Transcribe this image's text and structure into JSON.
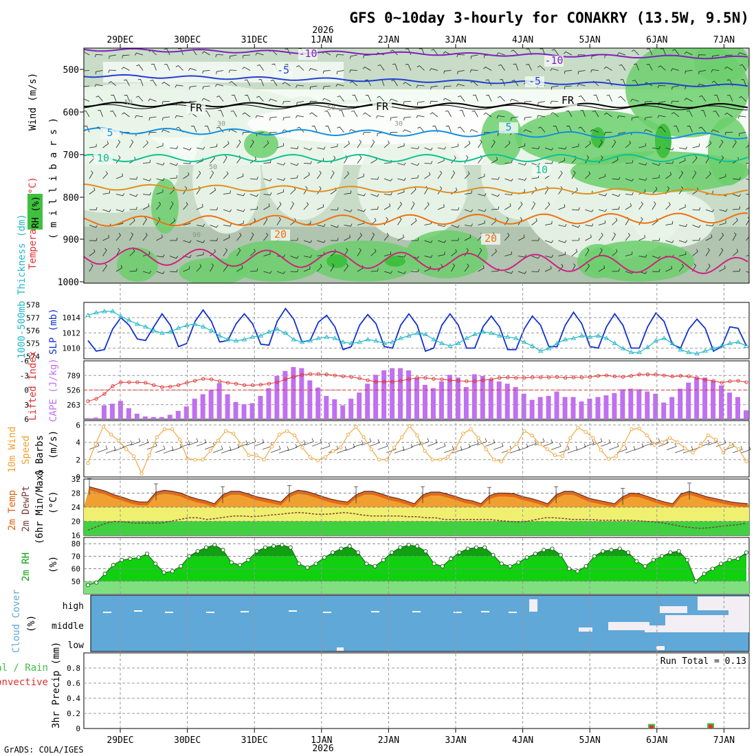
{
  "header": {
    "title": "GFS 0~10day 3-hourly for CONAKRY (13.5W, 9.5N)",
    "year": "2026",
    "footer": "GrADS: COLA/IGES"
  },
  "dates": [
    "29DEC",
    "30DEC",
    "31DEC",
    "1JAN",
    "2JAN",
    "3JAN",
    "4JAN",
    "5JAN",
    "6JAN",
    "7JAN"
  ],
  "colors": {
    "rh_light": "#e8f4e8",
    "rh_mid": "#c8dcc8",
    "rh_dark": "#b0c4b0",
    "rh_green": "#6ccf6c",
    "rh_bright": "#40c040",
    "slp": "#1030d0",
    "thickness": "#20b8c8",
    "lifted_index": "#e03030",
    "cape": "#c070f0",
    "wind10m": "#f0a030",
    "temp_fill": "#f0a030",
    "temp_top": "#e06010",
    "dewpt": "#804040",
    "rh2m_light": "#80e080",
    "rh2m": "#10d010",
    "rh2m_dark": "#10a010",
    "cloud": "#60a8d8",
    "precip_conv": "#e03030",
    "precip_total": "#40c040"
  },
  "panels": {
    "upper": {
      "label_wind": "Wind (m/s)",
      "label_temp": "Temperature (°C)",
      "label_rh": "RH (%)",
      "label_units": "( m i l l i b a r s )",
      "levels": [
        "500",
        "600",
        "700",
        "800",
        "900",
        "1000"
      ],
      "contour_labels": [
        {
          "text": "-10",
          "color": "#8020c0"
        },
        {
          "text": "-10",
          "color": "#8020c0"
        },
        {
          "text": "-5",
          "color": "#2040d0"
        },
        {
          "text": "-5",
          "color": "#2040d0"
        },
        {
          "text": "FR",
          "color": "#000000"
        },
        {
          "text": "FR",
          "color": "#000000"
        },
        {
          "text": "FR",
          "color": "#000000"
        },
        {
          "text": "5",
          "color": "#1090e0"
        },
        {
          "text": "5",
          "color": "#1090e0"
        },
        {
          "text": "10",
          "color": "#10c090"
        },
        {
          "text": "10",
          "color": "#10c090"
        },
        {
          "text": "20",
          "color": "#f07010"
        },
        {
          "text": "20",
          "color": "#f07010"
        }
      ],
      "rh_labels": [
        "50",
        "30",
        "50",
        "50",
        "30",
        "90"
      ]
    },
    "slp": {
      "label_thick": "1000-500mb Thickness (dm)",
      "label_slp": "SLP (mb)",
      "left_ticks": [
        "578",
        "577",
        "576",
        "575",
        "574"
      ],
      "right_ticks": [
        "1014",
        "1012",
        "1010"
      ]
    },
    "cape": {
      "label_li": "Lifted Index",
      "label_cape": "CAPE (J/kg)",
      "li_ticks": [
        "-6",
        "-3",
        "0",
        "3",
        "6"
      ],
      "cape_ticks": [
        "789",
        "526",
        "263"
      ]
    },
    "wind": {
      "label_1": "10m Wind",
      "label_2": "Speed",
      "label_3": "& Barbs",
      "label_4": "(m/s)",
      "ticks": [
        "6",
        "4",
        "2",
        "0"
      ]
    },
    "temp": {
      "label_1": "2m Temp",
      "label_2": "2m DewPt",
      "label_3": "(6hr Min/Max)",
      "label_4": "(°C)",
      "ticks": [
        "32",
        "28",
        "24",
        "20",
        "16"
      ]
    },
    "rh": {
      "label_1": "2m RH",
      "label_2": "(%)",
      "ticks": [
        "80",
        "70",
        "60",
        "50"
      ]
    },
    "cloud": {
      "label_1": "Cloud Cover",
      "label_2": "(%)",
      "levels": [
        "high",
        "middle",
        "low"
      ]
    },
    "precip": {
      "label_1": "Total / Rain",
      "label_2": "Convective",
      "label_3": "3hr Precip (mm)",
      "ticks": [
        "0.8",
        "0.6",
        "0.4",
        "0.2",
        "0"
      ],
      "run_total": "Run Total = 0.13"
    }
  },
  "chart_data": [
    {
      "type": "line",
      "title": "1000-500mb Thickness (dm) / SLP (mb)",
      "series": [
        {
          "name": "SLP (mb)",
          "values": [
            1011.0,
            1009.6,
            1009.8,
            1012.5,
            1014.0,
            1013.0,
            1011.2,
            1011.0,
            1012.8,
            1014.5,
            1013.0,
            1010.2,
            1010.6,
            1013.5,
            1015.0,
            1013.5,
            1010.8,
            1011.0,
            1013.2,
            1014.5,
            1013.2,
            1010.5,
            1010.4,
            1013.5,
            1015.2,
            1013.8,
            1010.8,
            1011.0,
            1013.4,
            1014.3,
            1012.8,
            1009.8,
            1010.2,
            1013.0,
            1014.4,
            1013.2,
            1010.2,
            1010.0,
            1013.0,
            1014.5,
            1013.0,
            1009.6,
            1010.0,
            1013.0,
            1014.5,
            1013.0,
            1010.0,
            1010.0,
            1012.8,
            1014.2,
            1012.8,
            1009.8,
            1009.8,
            1012.5,
            1014.2,
            1013.0,
            1010.2,
            1010.2,
            1013.0,
            1014.7,
            1013.2,
            1010.2,
            1010.0,
            1012.8,
            1014.5,
            1013.0,
            1010.0,
            1010.0,
            1012.8,
            1014.6,
            1013.5,
            1010.5,
            1010.0,
            1012.5,
            1013.8,
            1012.6,
            1009.6,
            1010.2,
            1012.8,
            1012.6,
            1010.3
          ]
        },
        {
          "name": "1000-500mb Thickness (dm)",
          "values": [
            577.2,
            577.4,
            577.5,
            577.5,
            577.1,
            576.8,
            576.5,
            576.3,
            576.0,
            575.8,
            575.9,
            576.2,
            576.4,
            576.5,
            576.3,
            576.0,
            575.6,
            575.3,
            575.2,
            575.3,
            575.5,
            575.6,
            575.9,
            576.1,
            575.8,
            575.3,
            575.1,
            575.2,
            575.4,
            575.5,
            575.4,
            575.1,
            575.0,
            575.1,
            575.3,
            575.2,
            575.0,
            575.1,
            575.4,
            575.6,
            575.8,
            575.7,
            575.3,
            575.0,
            574.8,
            575.0,
            575.4,
            575.7,
            575.9,
            575.8,
            575.6,
            575.5,
            575.4,
            575.1,
            574.8,
            574.4,
            574.6,
            575.0,
            575.3,
            575.4,
            575.6,
            575.5,
            575.6,
            575.4,
            575.0,
            574.6,
            574.3,
            574.3,
            574.7,
            575.2,
            575.4,
            575.0,
            574.5,
            574.3,
            574.2,
            574.4,
            574.6,
            574.8,
            575.0,
            575.1,
            574.8
          ]
        }
      ],
      "ylim_left": [
        573.8,
        578.2
      ],
      "ylim_right": [
        1008.6,
        1016.0
      ]
    },
    {
      "type": "bar",
      "title": "Lifted Index / CAPE (J/kg)",
      "series": [
        {
          "name": "CAPE (J/kg)",
          "values": [
            20,
            30,
            250,
            280,
            330,
            200,
            100,
            50,
            40,
            40,
            80,
            150,
            230,
            370,
            450,
            530,
            650,
            450,
            310,
            270,
            290,
            420,
            560,
            780,
            870,
            940,
            920,
            700,
            570,
            420,
            360,
            250,
            370,
            480,
            640,
            800,
            880,
            920,
            920,
            880,
            740,
            620,
            560,
            680,
            800,
            750,
            580,
            810,
            780,
            720,
            680,
            640,
            580,
            460,
            350,
            400,
            420,
            500,
            400,
            400,
            320,
            370,
            400,
            430,
            470,
            540,
            550,
            540,
            500,
            460,
            300,
            400,
            550,
            660,
            750,
            750,
            690,
            610,
            480,
            400,
            160
          ]
        },
        {
          "name": "Lifted Index",
          "values": [
            2.3,
            1.8,
            0.8,
            -0.8,
            -1.6,
            -1.6,
            -1.6,
            -1.5,
            -1.0,
            -0.6,
            -0.7,
            -1.0,
            -1.5,
            -1.9,
            -2.3,
            -2.2,
            -1.8,
            -1.5,
            -1.3,
            -1.0,
            -1.0,
            -1.1,
            -1.3,
            -1.6,
            -2.2,
            -2.7,
            -3.1,
            -3.3,
            -3.3,
            -3.2,
            -3.0,
            -2.8,
            -2.7,
            -2.4,
            -2.0,
            -1.7,
            -1.7,
            -1.7,
            -1.9,
            -2.2,
            -2.5,
            -2.5,
            -2.3,
            -2.2,
            -2.0,
            -1.9,
            -1.8,
            -1.8,
            -2.0,
            -2.2,
            -2.5,
            -2.6,
            -2.5,
            -2.5,
            -2.6,
            -2.6,
            -2.6,
            -2.7,
            -2.5,
            -2.6,
            -2.6,
            -2.7,
            -2.9,
            -3.0,
            -2.8,
            -2.7,
            -2.9,
            -3.2,
            -3.2,
            -3.2,
            -3.0,
            -2.8,
            -2.9,
            -2.8,
            -2.5,
            -2.1,
            -1.9,
            -1.5,
            -1.8,
            -1.9,
            -1.6
          ]
        }
      ],
      "ylim_li": [
        6,
        -6
      ],
      "ylim_cape": [
        0,
        1052
      ]
    },
    {
      "type": "line",
      "title": "10m Wind Speed & Barbs (m/s)",
      "series": [
        {
          "name": "Speed",
          "values": [
            1.6,
            3.8,
            5.8,
            4.9,
            4.2,
            3.2,
            2.4,
            0.4,
            2.5,
            4.6,
            5.5,
            5.5,
            4.3,
            2.1,
            2.0,
            2.0,
            3.0,
            4.2,
            5.3,
            5.0,
            3.8,
            2.5,
            2.5,
            2.0,
            3.5,
            4.9,
            5.3,
            4.8,
            3.4,
            2.3,
            1.9,
            2.3,
            3.0,
            3.4,
            4.9,
            5.8,
            4.6,
            3.2,
            2.0,
            2.0,
            3.4,
            4.6,
            5.9,
            4.8,
            3.0,
            2.0,
            2.0,
            2.3,
            3.3,
            5.0,
            5.5,
            4.5,
            3.2,
            2.0,
            1.8,
            3.0,
            3.8,
            5.3,
            4.8,
            3.8,
            3.2,
            2.5,
            2.4,
            4.5,
            5.7,
            5.2,
            4.5,
            3.1,
            2.1,
            2.4,
            3.8,
            5.5,
            5.6,
            4.8,
            3.7,
            4.0,
            4.5,
            4.0,
            3.3,
            2.8,
            3.6,
            4.8,
            4.3,
            2.8,
            3.8,
            3.2,
            1.8
          ]
        }
      ],
      "ylim": [
        0,
        6.5
      ]
    },
    {
      "type": "area",
      "title": "2m Temp / 2m DewPt (6hr Min/Max) (°C)",
      "series": [
        {
          "name": "2m Temp",
          "values": [
            29.8,
            29.2,
            28.5,
            27.5,
            26.8,
            26.0,
            25.5,
            25.5,
            28.3,
            28.8,
            28.5,
            28.0,
            27.0,
            26.3,
            25.8,
            25.0,
            27.5,
            28.5,
            28.5,
            27.8,
            27.0,
            26.5,
            26.0,
            25.5,
            27.8,
            28.8,
            28.5,
            27.8,
            27.0,
            26.3,
            25.8,
            25.5,
            27.5,
            28.5,
            28.5,
            27.8,
            27.0,
            26.5,
            25.8,
            25.0,
            27.5,
            28.3,
            28.3,
            27.7,
            27.0,
            26.2,
            25.8,
            25.0,
            27.3,
            28.0,
            28.0,
            27.8,
            27.0,
            26.5,
            25.8,
            25.0,
            27.5,
            28.5,
            28.5,
            27.5,
            26.5,
            26.0,
            25.5,
            25.0,
            27.0,
            28.0,
            27.8,
            27.0,
            26.2,
            25.5,
            25.0,
            27.8,
            28.5,
            27.8,
            27.0,
            26.5,
            26.0,
            25.5,
            25.2,
            25.0
          ]
        },
        {
          "name": "2m DewPt",
          "values": [
            17.5,
            18.5,
            19.5,
            20.0,
            19.8,
            19.5,
            19.5,
            19.5,
            19.5,
            20.0,
            20.5,
            21.0,
            21.0,
            20.5,
            20.8,
            21.2,
            21.5,
            21.5,
            21.3,
            21.5,
            21.8,
            22.0,
            22.3,
            22.5,
            22.3,
            22.0,
            22.0,
            22.2,
            22.5,
            22.2,
            21.8,
            21.5,
            21.5,
            21.5,
            21.5,
            21.3,
            21.3,
            21.0,
            21.0,
            20.5,
            20.5,
            20.5,
            20.5,
            20.5,
            20.5,
            20.2,
            20.0,
            19.8,
            20.0,
            20.5,
            21.0,
            21.0,
            20.8,
            20.5,
            20.5,
            20.5,
            20.3,
            20.3,
            20.3,
            20.3,
            20.2,
            20.0,
            19.8,
            19.5,
            19.0,
            18.5,
            18.2,
            18.0,
            18.2,
            18.5,
            18.8,
            19.0,
            19.5
          ]
        }
      ],
      "ylim": [
        16,
        32
      ]
    },
    {
      "type": "area",
      "title": "2m RH (%)",
      "series": [
        {
          "name": "2m RH",
          "values": [
            47,
            49,
            56,
            63,
            67,
            68,
            69,
            72,
            64,
            57,
            58,
            62,
            70,
            74,
            77,
            79,
            75,
            65,
            63,
            67,
            74,
            77,
            78,
            79,
            77,
            64,
            61,
            64,
            69,
            73,
            76,
            78,
            73,
            64,
            62,
            67,
            73,
            77,
            79,
            78,
            74,
            64,
            62,
            68,
            73,
            76,
            77,
            77,
            71,
            64,
            62,
            65,
            69,
            72,
            75,
            76,
            71,
            60,
            58,
            62,
            70,
            74,
            75,
            76,
            73,
            66,
            62,
            67,
            70,
            73,
            74,
            67,
            50,
            56,
            60,
            64,
            67,
            68,
            73
          ]
        }
      ],
      "ylim": [
        40,
        85
      ]
    },
    {
      "type": "bar",
      "title": "3hr Precip (mm)",
      "series": [
        {
          "name": "Convective",
          "values": [
            0.0,
            0.06,
            0.07
          ]
        }
      ],
      "categories": [
        "",
        "6JAN",
        "7JAN"
      ],
      "ylim": [
        0,
        1.0
      ]
    }
  ]
}
